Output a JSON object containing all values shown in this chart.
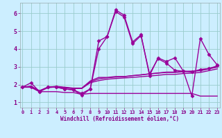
{
  "xlabel": "Windchill (Refroidissement éolien,°C)",
  "bg_color": "#cceeff",
  "grid_color": "#99cccc",
  "line_color": "#990099",
  "spine_color": "#99aaaa",
  "tick_color": "#880088",
  "x_ticks": [
    0,
    1,
    2,
    3,
    4,
    5,
    6,
    7,
    8,
    9,
    10,
    11,
    12,
    13,
    14,
    15,
    16,
    17,
    18,
    19,
    20,
    21,
    22,
    23
  ],
  "y_ticks": [
    1,
    2,
    3,
    4,
    5,
    6
  ],
  "xlim": [
    -0.3,
    23.3
  ],
  "ylim": [
    0.7,
    6.6
  ],
  "series": {
    "line_flat": {
      "x": [
        0,
        1,
        2,
        3,
        4,
        5,
        6,
        7,
        8,
        9,
        10,
        11,
        12,
        13,
        14,
        15,
        16,
        17,
        18,
        19,
        20,
        21,
        22,
        23
      ],
      "y": [
        1.85,
        1.85,
        1.6,
        1.6,
        1.6,
        1.55,
        1.55,
        1.45,
        1.5,
        1.5,
        1.5,
        1.5,
        1.5,
        1.5,
        1.5,
        1.5,
        1.5,
        1.5,
        1.5,
        1.5,
        1.5,
        1.35,
        1.35,
        1.35
      ],
      "marker": null,
      "markersize": 0,
      "linewidth": 1.0
    },
    "line_grad1": {
      "x": [
        0,
        1,
        2,
        3,
        4,
        5,
        6,
        7,
        8,
        9,
        10,
        11,
        12,
        13,
        14,
        15,
        16,
        17,
        18,
        19,
        20,
        21,
        22,
        23
      ],
      "y": [
        1.85,
        1.9,
        1.65,
        1.85,
        1.88,
        1.82,
        1.78,
        1.78,
        2.15,
        2.32,
        2.38,
        2.42,
        2.44,
        2.5,
        2.54,
        2.6,
        2.64,
        2.68,
        2.68,
        2.72,
        2.74,
        2.78,
        2.88,
        2.98
      ],
      "marker": null,
      "markersize": 0,
      "linewidth": 1.0
    },
    "line_grad2": {
      "x": [
        0,
        1,
        2,
        3,
        4,
        5,
        6,
        7,
        8,
        9,
        10,
        11,
        12,
        13,
        14,
        15,
        16,
        17,
        18,
        19,
        20,
        21,
        22,
        23
      ],
      "y": [
        1.85,
        1.88,
        1.62,
        1.82,
        1.88,
        1.82,
        1.78,
        1.78,
        2.1,
        2.22,
        2.3,
        2.34,
        2.37,
        2.4,
        2.44,
        2.48,
        2.52,
        2.57,
        2.57,
        2.62,
        2.64,
        2.68,
        2.78,
        2.88
      ],
      "marker": null,
      "markersize": 0,
      "linewidth": 1.0
    },
    "line_grad3": {
      "x": [
        0,
        1,
        2,
        3,
        4,
        5,
        6,
        7,
        8,
        9,
        10,
        11,
        12,
        13,
        14,
        15,
        16,
        17,
        18,
        19,
        20,
        21,
        22,
        23
      ],
      "y": [
        1.85,
        1.9,
        1.65,
        1.85,
        1.9,
        1.85,
        1.8,
        1.8,
        2.2,
        2.4,
        2.4,
        2.45,
        2.45,
        2.5,
        2.55,
        2.6,
        2.65,
        2.7,
        2.7,
        2.75,
        2.75,
        2.8,
        2.9,
        3.0
      ],
      "marker": null,
      "markersize": 0,
      "linewidth": 1.0
    },
    "line_main1": {
      "x": [
        0,
        1,
        2,
        3,
        4,
        5,
        6,
        7,
        8,
        9,
        10,
        11,
        12,
        13,
        14,
        15,
        16,
        17,
        18,
        19,
        20,
        21,
        22,
        23
      ],
      "y": [
        1.85,
        2.1,
        1.6,
        1.85,
        1.85,
        1.75,
        1.7,
        1.4,
        1.75,
        4.45,
        4.7,
        6.2,
        5.9,
        4.4,
        4.8,
        2.5,
        3.5,
        3.3,
        3.5,
        2.75,
        1.35,
        4.6,
        3.7,
        3.1
      ],
      "marker": "D",
      "markersize": 2.5,
      "linewidth": 1.0
    },
    "line_main2": {
      "x": [
        0,
        1,
        2,
        3,
        4,
        5,
        6,
        7,
        8,
        9,
        10,
        11,
        12,
        13,
        14,
        15,
        16,
        17,
        18,
        19,
        20,
        21,
        22,
        23
      ],
      "y": [
        1.85,
        1.85,
        1.6,
        1.85,
        1.85,
        1.75,
        1.7,
        1.5,
        1.75,
        4.0,
        4.7,
        6.1,
        5.8,
        4.3,
        4.75,
        2.6,
        3.45,
        3.2,
        2.8,
        2.75,
        2.7,
        2.85,
        2.9,
        3.05
      ],
      "marker": "D",
      "markersize": 2.5,
      "linewidth": 1.0
    }
  }
}
